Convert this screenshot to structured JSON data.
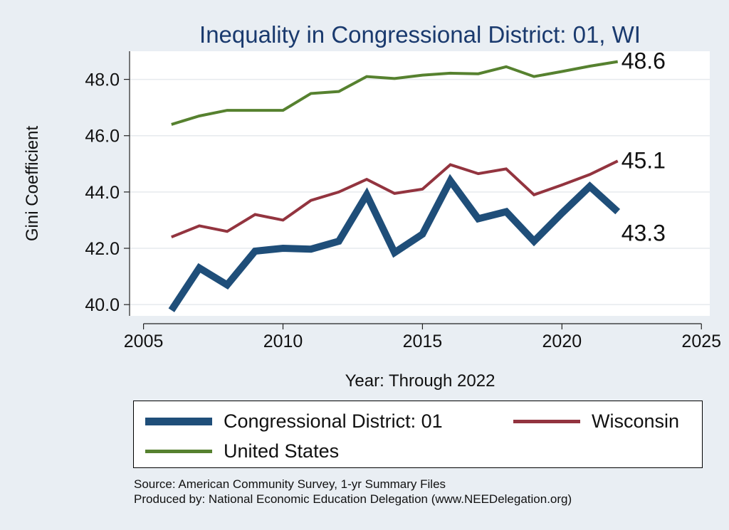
{
  "chart_data": {
    "type": "line",
    "title": "Inequality in Congressional District:  01, WI",
    "xlabel": "Year: Through 2022",
    "ylabel": "Gini Coefficient",
    "xlim": [
      2004.5,
      2025.3
    ],
    "ylim": [
      39.6,
      49.0
    ],
    "x_ticks": [
      2005,
      2010,
      2015,
      2020,
      2025
    ],
    "y_ticks": [
      40.0,
      42.0,
      44.0,
      46.0,
      48.0
    ],
    "grid": true,
    "legend_placement": "bottom",
    "series": [
      {
        "name": "Congressional District:  01",
        "color": "#1f4e79",
        "line_weight": "thick",
        "end_label": "43.3",
        "x": [
          2006,
          2007,
          2008,
          2009,
          2010,
          2011,
          2012,
          2013,
          2014,
          2015,
          2016,
          2017,
          2018,
          2019,
          2020,
          2021,
          2022
        ],
        "y": [
          39.8,
          41.3,
          40.7,
          41.9,
          42.0,
          41.97,
          42.25,
          43.9,
          41.85,
          42.5,
          44.4,
          43.05,
          43.3,
          42.25,
          43.25,
          44.2,
          43.3
        ]
      },
      {
        "name": "Wisconsin",
        "color": "#93343f",
        "line_weight": "medium",
        "end_label": "45.1",
        "x": [
          2006,
          2007,
          2008,
          2009,
          2010,
          2011,
          2012,
          2013,
          2014,
          2015,
          2016,
          2017,
          2018,
          2019,
          2020,
          2021,
          2022
        ],
        "y": [
          42.4,
          42.8,
          42.6,
          43.2,
          43.0,
          43.7,
          44.0,
          44.45,
          43.95,
          44.1,
          44.97,
          44.65,
          44.82,
          43.9,
          44.25,
          44.62,
          45.1
        ]
      },
      {
        "name": "United States",
        "color": "#56812f",
        "line_weight": "medium",
        "end_label": "48.6",
        "x": [
          2006,
          2007,
          2008,
          2009,
          2010,
          2011,
          2012,
          2013,
          2014,
          2015,
          2016,
          2017,
          2018,
          2019,
          2020,
          2021,
          2022
        ],
        "y": [
          46.4,
          46.7,
          46.9,
          46.9,
          46.9,
          47.5,
          47.57,
          48.1,
          48.03,
          48.15,
          48.22,
          48.2,
          48.45,
          48.1,
          48.28,
          48.47,
          48.63
        ]
      }
    ]
  },
  "footnotes": {
    "source": "Source: American Community Survey, 1-yr Summary Files",
    "producer": "Produced by: National Economic Education Delegation (www.NEEDelegation.org)"
  }
}
